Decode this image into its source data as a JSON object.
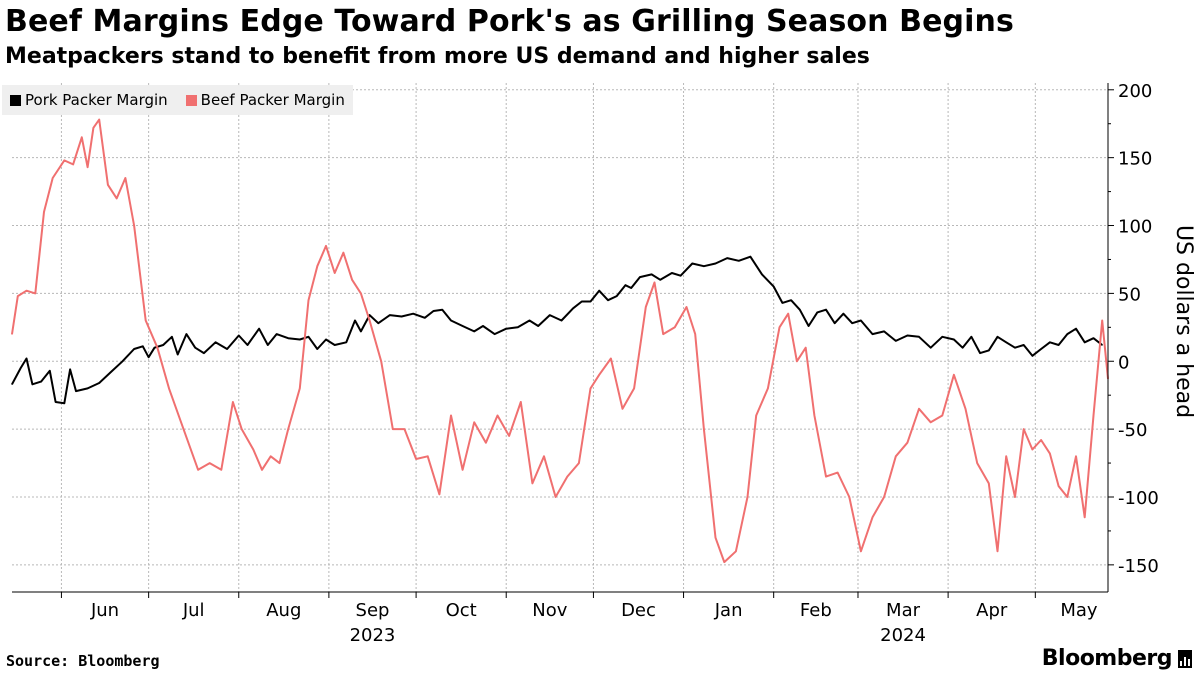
{
  "header": {
    "title": "Beef Margins Edge Toward Pork's as Grilling Season Begins",
    "subtitle": "Meatpackers stand to benefit from more US demand and higher sales"
  },
  "footer": {
    "source": "Source: Bloomberg",
    "brand": "Bloomberg"
  },
  "colors": {
    "pork": "#000000",
    "beef": "#f07070",
    "grid": "#b8b8b8",
    "legend_bg": "#efefef"
  },
  "chart_data": {
    "type": "line",
    "title": "Beef Margins Edge Toward Pork's as Grilling Season Begins",
    "subtitle": "Meatpackers stand to benefit from more US demand and higher sales",
    "xlabel": "",
    "ylabel": "US dollars a head",
    "ylim": [
      -170,
      205
    ],
    "yticks": [
      200,
      150,
      100,
      50,
      0,
      -50,
      -100,
      -150
    ],
    "grid": true,
    "legend_position": "top-left",
    "x_domain": [
      "2023-05-15",
      "2024-05-26"
    ],
    "month_ticks": [
      {
        "date": "2023-06-01",
        "label": "Jun"
      },
      {
        "date": "2023-07-01",
        "label": "Jul"
      },
      {
        "date": "2023-08-01",
        "label": "Aug"
      },
      {
        "date": "2023-09-01",
        "label": "Sep"
      },
      {
        "date": "2023-10-01",
        "label": "Oct"
      },
      {
        "date": "2023-11-01",
        "label": "Nov"
      },
      {
        "date": "2023-12-01",
        "label": "Dec"
      },
      {
        "date": "2024-01-01",
        "label": "Jan"
      },
      {
        "date": "2024-02-01",
        "label": "Feb"
      },
      {
        "date": "2024-03-01",
        "label": "Mar"
      },
      {
        "date": "2024-04-01",
        "label": "Apr"
      },
      {
        "date": "2024-05-01",
        "label": "May"
      }
    ],
    "year_labels": [
      {
        "date": "2023-09-01",
        "label": "2023"
      },
      {
        "date": "2024-03-01",
        "label": "2024"
      }
    ],
    "series": [
      {
        "name": "Pork Packer Margin",
        "color": "#000000",
        "points": [
          [
            "2023-05-15",
            -17
          ],
          [
            "2023-05-18",
            -5
          ],
          [
            "2023-05-20",
            2
          ],
          [
            "2023-05-22",
            -17
          ],
          [
            "2023-05-25",
            -15
          ],
          [
            "2023-05-28",
            -7
          ],
          [
            "2023-05-30",
            -30
          ],
          [
            "2023-06-02",
            -31
          ],
          [
            "2023-06-04",
            -6
          ],
          [
            "2023-06-06",
            -22
          ],
          [
            "2023-06-10",
            -20
          ],
          [
            "2023-06-14",
            -16
          ],
          [
            "2023-06-18",
            -8
          ],
          [
            "2023-06-22",
            0
          ],
          [
            "2023-06-26",
            9
          ],
          [
            "2023-06-29",
            11
          ],
          [
            "2023-07-01",
            3
          ],
          [
            "2023-07-03",
            10
          ],
          [
            "2023-07-06",
            12
          ],
          [
            "2023-07-09",
            18
          ],
          [
            "2023-07-11",
            5
          ],
          [
            "2023-07-14",
            20
          ],
          [
            "2023-07-17",
            10
          ],
          [
            "2023-07-20",
            6
          ],
          [
            "2023-07-24",
            14
          ],
          [
            "2023-07-28",
            9
          ],
          [
            "2023-08-01",
            19
          ],
          [
            "2023-08-04",
            12
          ],
          [
            "2023-08-08",
            24
          ],
          [
            "2023-08-11",
            12
          ],
          [
            "2023-08-14",
            20
          ],
          [
            "2023-08-18",
            17
          ],
          [
            "2023-08-22",
            16
          ],
          [
            "2023-08-25",
            18
          ],
          [
            "2023-08-28",
            9
          ],
          [
            "2023-08-31",
            16
          ],
          [
            "2023-09-03",
            12
          ],
          [
            "2023-09-07",
            14
          ],
          [
            "2023-09-10",
            30
          ],
          [
            "2023-09-12",
            22
          ],
          [
            "2023-09-15",
            34
          ],
          [
            "2023-09-18",
            28
          ],
          [
            "2023-09-22",
            34
          ],
          [
            "2023-09-26",
            33
          ],
          [
            "2023-09-30",
            35
          ],
          [
            "2023-10-04",
            32
          ],
          [
            "2023-10-07",
            37
          ],
          [
            "2023-10-10",
            38
          ],
          [
            "2023-10-13",
            30
          ],
          [
            "2023-10-17",
            26
          ],
          [
            "2023-10-21",
            22
          ],
          [
            "2023-10-24",
            26
          ],
          [
            "2023-10-28",
            20
          ],
          [
            "2023-11-01",
            24
          ],
          [
            "2023-11-05",
            25
          ],
          [
            "2023-11-09",
            30
          ],
          [
            "2023-11-12",
            26
          ],
          [
            "2023-11-16",
            34
          ],
          [
            "2023-11-20",
            30
          ],
          [
            "2023-11-24",
            39
          ],
          [
            "2023-11-27",
            44
          ],
          [
            "2023-11-30",
            44
          ],
          [
            "2023-12-03",
            52
          ],
          [
            "2023-12-06",
            45
          ],
          [
            "2023-12-09",
            48
          ],
          [
            "2023-12-12",
            56
          ],
          [
            "2023-12-14",
            54
          ],
          [
            "2023-12-17",
            62
          ],
          [
            "2023-12-21",
            64
          ],
          [
            "2023-12-24",
            60
          ],
          [
            "2023-12-28",
            65
          ],
          [
            "2023-12-31",
            63
          ],
          [
            "2024-01-04",
            72
          ],
          [
            "2024-01-08",
            70
          ],
          [
            "2024-01-12",
            72
          ],
          [
            "2024-01-16",
            76
          ],
          [
            "2024-01-20",
            74
          ],
          [
            "2024-01-24",
            77
          ],
          [
            "2024-01-28",
            64
          ],
          [
            "2024-02-01",
            55
          ],
          [
            "2024-02-04",
            43
          ],
          [
            "2024-02-07",
            45
          ],
          [
            "2024-02-10",
            38
          ],
          [
            "2024-02-13",
            26
          ],
          [
            "2024-02-16",
            36
          ],
          [
            "2024-02-19",
            38
          ],
          [
            "2024-02-22",
            28
          ],
          [
            "2024-02-25",
            35
          ],
          [
            "2024-02-28",
            28
          ],
          [
            "2024-03-02",
            30
          ],
          [
            "2024-03-06",
            20
          ],
          [
            "2024-03-10",
            22
          ],
          [
            "2024-03-14",
            15
          ],
          [
            "2024-03-18",
            19
          ],
          [
            "2024-03-22",
            18
          ],
          [
            "2024-03-26",
            10
          ],
          [
            "2024-03-30",
            18
          ],
          [
            "2024-04-03",
            16
          ],
          [
            "2024-04-06",
            10
          ],
          [
            "2024-04-09",
            18
          ],
          [
            "2024-04-12",
            6
          ],
          [
            "2024-04-15",
            8
          ],
          [
            "2024-04-18",
            18
          ],
          [
            "2024-04-21",
            14
          ],
          [
            "2024-04-24",
            10
          ],
          [
            "2024-04-27",
            12
          ],
          [
            "2024-04-30",
            4
          ],
          [
            "2024-05-03",
            9
          ],
          [
            "2024-05-06",
            14
          ],
          [
            "2024-05-09",
            12
          ],
          [
            "2024-05-12",
            20
          ],
          [
            "2024-05-15",
            24
          ],
          [
            "2024-05-18",
            14
          ],
          [
            "2024-05-21",
            17
          ],
          [
            "2024-05-24",
            12
          ]
        ]
      },
      {
        "name": "Beef Packer Margin",
        "color": "#f07070",
        "points": [
          [
            "2023-05-15",
            20
          ],
          [
            "2023-05-17",
            48
          ],
          [
            "2023-05-20",
            52
          ],
          [
            "2023-05-23",
            50
          ],
          [
            "2023-05-26",
            110
          ],
          [
            "2023-05-29",
            135
          ],
          [
            "2023-06-02",
            148
          ],
          [
            "2023-06-05",
            145
          ],
          [
            "2023-06-08",
            165
          ],
          [
            "2023-06-10",
            143
          ],
          [
            "2023-06-12",
            172
          ],
          [
            "2023-06-14",
            178
          ],
          [
            "2023-06-17",
            130
          ],
          [
            "2023-06-20",
            120
          ],
          [
            "2023-06-23",
            135
          ],
          [
            "2023-06-26",
            100
          ],
          [
            "2023-06-30",
            30
          ],
          [
            "2023-07-04",
            10
          ],
          [
            "2023-07-08",
            -20
          ],
          [
            "2023-07-13",
            -50
          ],
          [
            "2023-07-18",
            -80
          ],
          [
            "2023-07-22",
            -75
          ],
          [
            "2023-07-26",
            -80
          ],
          [
            "2023-07-30",
            -30
          ],
          [
            "2023-08-02",
            -50
          ],
          [
            "2023-08-06",
            -65
          ],
          [
            "2023-08-09",
            -80
          ],
          [
            "2023-08-12",
            -70
          ],
          [
            "2023-08-15",
            -75
          ],
          [
            "2023-08-18",
            -50
          ],
          [
            "2023-08-22",
            -20
          ],
          [
            "2023-08-25",
            45
          ],
          [
            "2023-08-28",
            70
          ],
          [
            "2023-08-31",
            85
          ],
          [
            "2023-09-03",
            65
          ],
          [
            "2023-09-06",
            80
          ],
          [
            "2023-09-09",
            60
          ],
          [
            "2023-09-12",
            50
          ],
          [
            "2023-09-15",
            30
          ],
          [
            "2023-09-19",
            0
          ],
          [
            "2023-09-23",
            -50
          ],
          [
            "2023-09-27",
            -50
          ],
          [
            "2023-10-01",
            -72
          ],
          [
            "2023-10-05",
            -70
          ],
          [
            "2023-10-09",
            -98
          ],
          [
            "2023-10-13",
            -40
          ],
          [
            "2023-10-17",
            -80
          ],
          [
            "2023-10-21",
            -45
          ],
          [
            "2023-10-25",
            -60
          ],
          [
            "2023-10-29",
            -40
          ],
          [
            "2023-11-02",
            -55
          ],
          [
            "2023-11-06",
            -30
          ],
          [
            "2023-11-10",
            -90
          ],
          [
            "2023-11-14",
            -70
          ],
          [
            "2023-11-18",
            -100
          ],
          [
            "2023-11-22",
            -85
          ],
          [
            "2023-11-26",
            -75
          ],
          [
            "2023-11-30",
            -20
          ],
          [
            "2023-12-03",
            -10
          ],
          [
            "2023-12-07",
            2
          ],
          [
            "2023-12-11",
            -35
          ],
          [
            "2023-12-15",
            -20
          ],
          [
            "2023-12-19",
            40
          ],
          [
            "2023-12-22",
            58
          ],
          [
            "2023-12-25",
            20
          ],
          [
            "2023-12-29",
            25
          ],
          [
            "2024-01-02",
            40
          ],
          [
            "2024-01-05",
            20
          ],
          [
            "2024-01-08",
            -50
          ],
          [
            "2024-01-12",
            -130
          ],
          [
            "2024-01-15",
            -148
          ],
          [
            "2024-01-19",
            -140
          ],
          [
            "2024-01-23",
            -100
          ],
          [
            "2024-01-26",
            -40
          ],
          [
            "2024-01-30",
            -20
          ],
          [
            "2024-02-03",
            25
          ],
          [
            "2024-02-06",
            35
          ],
          [
            "2024-02-09",
            0
          ],
          [
            "2024-02-12",
            10
          ],
          [
            "2024-02-15",
            -40
          ],
          [
            "2024-02-19",
            -85
          ],
          [
            "2024-02-23",
            -82
          ],
          [
            "2024-02-27",
            -100
          ],
          [
            "2024-03-02",
            -140
          ],
          [
            "2024-03-06",
            -115
          ],
          [
            "2024-03-10",
            -100
          ],
          [
            "2024-03-14",
            -70
          ],
          [
            "2024-03-18",
            -60
          ],
          [
            "2024-03-22",
            -35
          ],
          [
            "2024-03-26",
            -45
          ],
          [
            "2024-03-30",
            -40
          ],
          [
            "2024-04-03",
            -10
          ],
          [
            "2024-04-07",
            -35
          ],
          [
            "2024-04-11",
            -75
          ],
          [
            "2024-04-15",
            -90
          ],
          [
            "2024-04-18",
            -140
          ],
          [
            "2024-04-21",
            -70
          ],
          [
            "2024-04-24",
            -100
          ],
          [
            "2024-04-27",
            -50
          ],
          [
            "2024-04-30",
            -65
          ],
          [
            "2024-05-03",
            -58
          ],
          [
            "2024-05-06",
            -68
          ],
          [
            "2024-05-09",
            -92
          ],
          [
            "2024-05-12",
            -100
          ],
          [
            "2024-05-15",
            -70
          ],
          [
            "2024-05-18",
            -115
          ],
          [
            "2024-05-21",
            -40
          ],
          [
            "2024-05-24",
            30
          ],
          [
            "2024-05-26",
            -13
          ]
        ]
      }
    ]
  }
}
